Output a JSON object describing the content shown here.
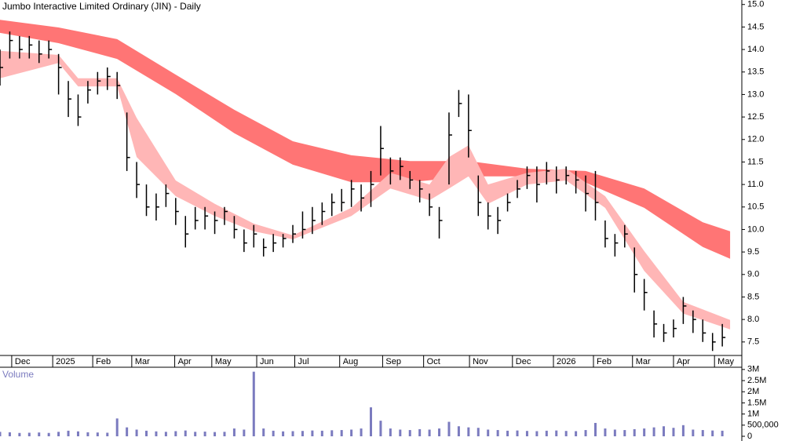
{
  "chart_data": [
    {
      "type": "ohlc",
      "title": "Jumbo Interactive Limited Ordinary (JIN) - Daily",
      "x": [
        0,
        1,
        2,
        3,
        4,
        5,
        6,
        7,
        8,
        9,
        10,
        11,
        12,
        13,
        14,
        15,
        16,
        17,
        18,
        19,
        20,
        21,
        22,
        23,
        24,
        25,
        26,
        27,
        28,
        29,
        30,
        31,
        32,
        33,
        34,
        35,
        36,
        37,
        38,
        39,
        40,
        41,
        42,
        43,
        44,
        45,
        46,
        47,
        48,
        49,
        50,
        51,
        52,
        53,
        54,
        55,
        56,
        57,
        58,
        59,
        60,
        61,
        62,
        63,
        64,
        65,
        66,
        67,
        68,
        69,
        70,
        71,
        72,
        73,
        74
      ],
      "high": [
        14.0,
        14.4,
        14.3,
        14.3,
        14.2,
        14.2,
        13.9,
        13.3,
        13.0,
        13.3,
        13.5,
        13.6,
        13.5,
        12.6,
        11.5,
        11.0,
        10.8,
        11.0,
        10.7,
        10.3,
        10.5,
        10.5,
        10.4,
        10.5,
        10.3,
        10.0,
        10.1,
        9.8,
        9.9,
        9.9,
        10.1,
        10.4,
        10.5,
        10.6,
        10.8,
        10.9,
        11.1,
        11.0,
        11.3,
        12.3,
        11.6,
        11.6,
        11.3,
        11.1,
        10.8,
        10.5,
        12.6,
        13.1,
        13.0,
        11.2,
        10.6,
        10.5,
        10.8,
        11.1,
        11.4,
        11.4,
        11.5,
        11.4,
        11.4,
        11.3,
        11.2,
        11.3,
        10.2,
        9.9,
        10.1,
        9.6,
        8.9,
        8.2,
        7.9,
        8.0,
        8.5,
        8.2,
        8.0,
        7.7,
        7.9
      ],
      "low": [
        13.2,
        13.8,
        13.8,
        13.8,
        13.7,
        13.8,
        13.0,
        12.5,
        12.3,
        12.8,
        13.0,
        13.1,
        12.9,
        11.3,
        10.7,
        10.3,
        10.2,
        10.5,
        10.1,
        9.6,
        10.0,
        10.0,
        9.9,
        10.1,
        9.8,
        9.5,
        9.6,
        9.4,
        9.5,
        9.6,
        9.7,
        9.8,
        9.9,
        10.1,
        10.3,
        10.4,
        10.5,
        10.4,
        10.5,
        11.2,
        11.0,
        11.1,
        10.9,
        10.6,
        10.3,
        9.8,
        11.0,
        12.5,
        11.6,
        10.3,
        10.0,
        9.9,
        10.4,
        10.7,
        10.9,
        10.6,
        11.0,
        10.8,
        11.0,
        10.8,
        10.4,
        10.2,
        9.6,
        9.4,
        9.6,
        8.6,
        8.2,
        7.6,
        7.5,
        7.6,
        7.9,
        7.7,
        7.5,
        7.3,
        7.4
      ],
      "close": [
        13.6,
        14.2,
        14.0,
        14.1,
        13.9,
        14.0,
        13.6,
        12.9,
        12.5,
        13.1,
        13.3,
        13.4,
        13.2,
        11.6,
        11.0,
        10.5,
        10.5,
        10.8,
        10.4,
        9.9,
        10.2,
        10.3,
        10.2,
        10.4,
        10.0,
        9.7,
        9.9,
        9.6,
        9.7,
        9.8,
        9.9,
        10.0,
        10.2,
        10.4,
        10.6,
        10.6,
        10.9,
        10.7,
        11.0,
        11.8,
        11.3,
        11.4,
        11.1,
        10.9,
        10.5,
        10.2,
        12.1,
        12.8,
        12.2,
        10.6,
        10.3,
        10.2,
        10.6,
        10.9,
        11.2,
        11.0,
        11.3,
        11.1,
        11.2,
        11.1,
        10.8,
        10.6,
        9.8,
        9.7,
        9.9,
        9.0,
        8.6,
        7.9,
        7.7,
        7.8,
        8.3,
        8.0,
        7.7,
        7.5,
        7.6
      ],
      "color": "#000000",
      "slow_band": {
        "x": [
          0,
          6,
          12,
          18,
          24,
          30,
          36,
          42,
          48,
          54,
          60,
          66,
          72,
          74.8
        ],
        "upper": [
          14.66,
          14.49,
          14.23,
          13.44,
          12.66,
          11.96,
          11.65,
          11.52,
          11.52,
          11.35,
          11.3,
          10.91,
          10.16,
          9.96
        ],
        "lower": [
          14.37,
          14.14,
          13.79,
          13.01,
          12.14,
          11.44,
          11.05,
          11.05,
          11.18,
          11.18,
          11.04,
          10.48,
          9.61,
          9.35
        ],
        "color": "#ff7575"
      },
      "fast_band": {
        "x": [
          0,
          6,
          8,
          12,
          14,
          18,
          22,
          26,
          30,
          36,
          40,
          44,
          46,
          48,
          50,
          54,
          58,
          62,
          66,
          70,
          74.8
        ],
        "upper": [
          13.97,
          13.88,
          13.36,
          13.36,
          12.48,
          11.09,
          10.57,
          10.13,
          9.87,
          10.48,
          11.26,
          11.0,
          11.61,
          11.87,
          11.0,
          11.26,
          11.35,
          10.74,
          9.52,
          8.39,
          7.99
        ],
        "lower": [
          13.36,
          13.7,
          13.18,
          13.18,
          11.61,
          10.74,
          10.3,
          9.96,
          9.78,
          10.3,
          10.91,
          10.65,
          10.91,
          11.18,
          10.57,
          11.0,
          11.09,
          10.48,
          9.08,
          8.13,
          7.78
        ],
        "color": "#ffb6b6"
      },
      "xlim": [
        0,
        76
      ],
      "xticks": [
        {
          "value": 1.2,
          "label": "Dec"
        },
        {
          "value": 5.4,
          "label": "2025"
        },
        {
          "value": 9.5,
          "label": "Feb"
        },
        {
          "value": 13.5,
          "label": "Mar"
        },
        {
          "value": 17.9,
          "label": "Apr"
        },
        {
          "value": 21.7,
          "label": "May"
        },
        {
          "value": 26.3,
          "label": "Jun"
        },
        {
          "value": 30.2,
          "label": "Jul"
        },
        {
          "value": 34.8,
          "label": "Aug"
        },
        {
          "value": 39.2,
          "label": "Sep"
        },
        {
          "value": 43.4,
          "label": "Oct"
        },
        {
          "value": 48.1,
          "label": "Nov"
        },
        {
          "value": 52.5,
          "label": "Dec"
        },
        {
          "value": 56.7,
          "label": "2026"
        },
        {
          "value": 60.8,
          "label": "Feb"
        },
        {
          "value": 64.8,
          "label": "Mar"
        },
        {
          "value": 69.0,
          "label": "Apr"
        },
        {
          "value": 73.2,
          "label": "May"
        }
      ],
      "ylim": [
        7.2,
        15.1
      ],
      "yticks": [
        7.5,
        {
          "value": 8,
          "label": "8.0"
        },
        8.5,
        {
          "value": 9,
          "label": "9.0"
        },
        9.5,
        {
          "value": 10,
          "label": "10.0"
        },
        10.5,
        {
          "value": 11,
          "label": "11.0"
        },
        11.5,
        {
          "value": 12,
          "label": "12.0"
        },
        12.5,
        {
          "value": 13,
          "label": "13.0"
        },
        13.5,
        {
          "value": 14,
          "label": "14.0"
        },
        14.5,
        {
          "value": 15,
          "label": "15.0"
        }
      ]
    },
    {
      "type": "bar",
      "title": "Volume",
      "x": [
        0,
        1,
        2,
        3,
        4,
        5,
        6,
        7,
        8,
        9,
        10,
        11,
        12,
        13,
        14,
        15,
        16,
        17,
        18,
        19,
        20,
        21,
        22,
        23,
        24,
        25,
        26,
        27,
        28,
        29,
        30,
        31,
        32,
        33,
        34,
        35,
        36,
        37,
        38,
        39,
        40,
        41,
        42,
        43,
        44,
        45,
        46,
        47,
        48,
        49,
        50,
        51,
        52,
        53,
        54,
        55,
        56,
        57,
        58,
        59,
        60,
        61,
        62,
        63,
        64,
        65,
        66,
        67,
        68,
        69,
        70,
        71,
        72,
        73,
        74
      ],
      "values": [
        200000,
        180000,
        150000,
        160000,
        170000,
        150000,
        200000,
        250000,
        220000,
        180000,
        170000,
        160000,
        800000,
        400000,
        300000,
        250000,
        220000,
        200000,
        230000,
        260000,
        200000,
        210000,
        190000,
        200000,
        350000,
        300000,
        2900000,
        350000,
        250000,
        220000,
        230000,
        240000,
        260000,
        250000,
        270000,
        280000,
        300000,
        350000,
        1300000,
        700000,
        350000,
        300000,
        280000,
        320000,
        300000,
        350000,
        650000,
        450000,
        400000,
        380000,
        300000,
        280000,
        250000,
        260000,
        240000,
        230000,
        250000,
        260000,
        240000,
        230000,
        280000,
        600000,
        350000,
        300000,
        280000,
        320000,
        350000,
        400000,
        450000,
        380000,
        500000,
        300000,
        280000,
        260000,
        250000
      ],
      "color": "#7b7bbf",
      "ylim": [
        0,
        3100000
      ],
      "yticks": [
        0,
        {
          "value": 500000,
          "label": "500,000"
        },
        {
          "value": 1000000,
          "label": "1M"
        },
        {
          "value": 1500000,
          "label": "1.5M"
        },
        {
          "value": 2000000,
          "label": "2M"
        },
        {
          "value": 2500000,
          "label": "2.5M"
        },
        {
          "value": 3000000,
          "label": "3M"
        }
      ]
    }
  ]
}
